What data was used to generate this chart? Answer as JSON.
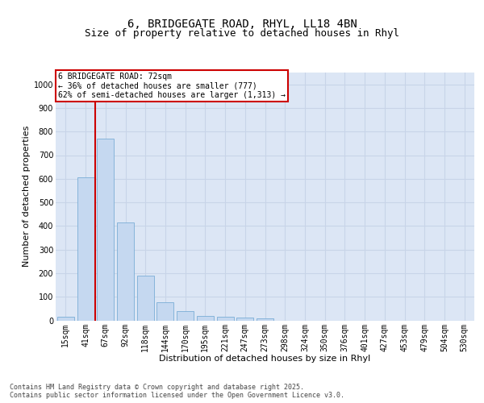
{
  "title_line1": "6, BRIDGEGATE ROAD, RHYL, LL18 4BN",
  "title_line2": "Size of property relative to detached houses in Rhyl",
  "xlabel": "Distribution of detached houses by size in Rhyl",
  "ylabel": "Number of detached properties",
  "categories": [
    "15sqm",
    "41sqm",
    "67sqm",
    "92sqm",
    "118sqm",
    "144sqm",
    "170sqm",
    "195sqm",
    "221sqm",
    "247sqm",
    "273sqm",
    "298sqm",
    "324sqm",
    "350sqm",
    "376sqm",
    "401sqm",
    "427sqm",
    "453sqm",
    "479sqm",
    "504sqm",
    "530sqm"
  ],
  "values": [
    14,
    605,
    770,
    415,
    190,
    78,
    38,
    20,
    16,
    12,
    10,
    0,
    0,
    0,
    0,
    0,
    0,
    0,
    0,
    0,
    0
  ],
  "bar_color": "#c5d8f0",
  "bar_edge_color": "#7aaed6",
  "grid_color": "#c8d4e8",
  "background_color": "#dce6f5",
  "vline_color": "#cc0000",
  "vline_x": 1.5,
  "annotation_text": "6 BRIDGEGATE ROAD: 72sqm\n← 36% of detached houses are smaller (777)\n62% of semi-detached houses are larger (1,313) →",
  "annotation_box_color": "#cc0000",
  "ylim": [
    0,
    1050
  ],
  "yticks": [
    0,
    100,
    200,
    300,
    400,
    500,
    600,
    700,
    800,
    900,
    1000
  ],
  "footer_text": "Contains HM Land Registry data © Crown copyright and database right 2025.\nContains public sector information licensed under the Open Government Licence v3.0.",
  "title_fontsize": 10,
  "subtitle_fontsize": 9,
  "axis_label_fontsize": 8,
  "tick_fontsize": 7,
  "annotation_fontsize": 7,
  "footer_fontsize": 6
}
